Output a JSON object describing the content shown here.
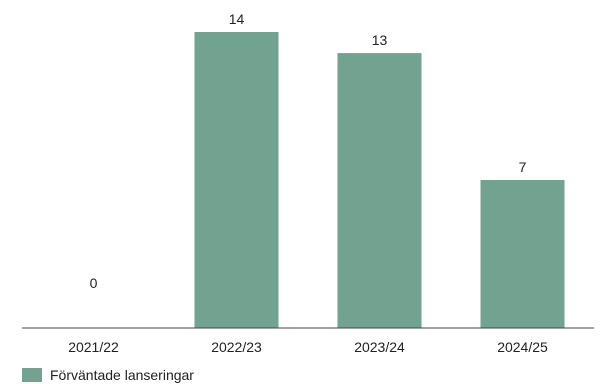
{
  "chart_data": {
    "type": "bar",
    "categories": [
      "2021/22",
      "2022/23",
      "2023/24",
      "2024/25"
    ],
    "series": [
      {
        "name": "Förväntade lanseringar",
        "values": [
          0,
          14,
          13,
          7
        ]
      }
    ],
    "data_labels": [
      "0",
      "14",
      "13",
      "7"
    ],
    "ylim": [
      0,
      14
    ],
    "grid": false,
    "legend_position": "bottom-left",
    "bar_color": "#72a290",
    "axis_color": "#444444"
  }
}
